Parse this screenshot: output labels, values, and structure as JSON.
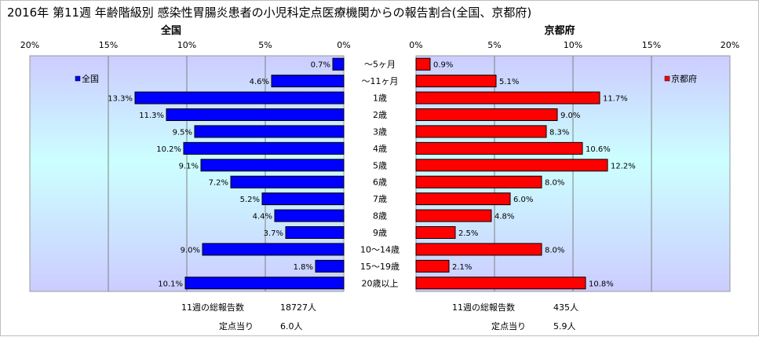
{
  "title": "2016年 第11週 年齢階級別 感染性胃腸炎患者の小児科定点医療機関からの報告割合(全国、京都府)",
  "chart_data": {
    "type": "bar",
    "orientation": "horizontal",
    "categories": [
      "～5ヶ月",
      "～11ヶ月",
      "1歳",
      "2歳",
      "3歳",
      "4歳",
      "5歳",
      "6歳",
      "7歳",
      "8歳",
      "9歳",
      "10～14歳",
      "15～19歳",
      "20歳以上"
    ],
    "left": {
      "panel_title": "全国",
      "legend": "全国",
      "color": "#0000ff",
      "values": [
        0.7,
        4.6,
        13.3,
        11.3,
        9.5,
        10.2,
        9.1,
        7.2,
        5.2,
        4.4,
        3.7,
        9.0,
        1.8,
        10.1
      ],
      "labels": [
        "0.7%",
        "4.6%",
        "13.3%",
        "11.3%",
        "9.5%",
        "10.2%",
        "9.1%",
        "7.2%",
        "5.2%",
        "4.4%",
        "3.7%",
        "9.0%",
        "1.8%",
        "10.1%"
      ],
      "xlim": [
        0,
        20
      ],
      "ticks": [
        "20%",
        "15%",
        "10%",
        "5%",
        "0%"
      ],
      "tick_values": [
        20,
        15,
        10,
        5,
        0
      ],
      "total_label": "11週の総報告数",
      "total_value": "18727人",
      "per_label": "定点当り",
      "per_value": "6.0人"
    },
    "right": {
      "panel_title": "京都府",
      "legend": "京都府",
      "color": "#ff0000",
      "values": [
        0.9,
        5.1,
        11.7,
        9.0,
        8.3,
        10.6,
        12.2,
        8.0,
        6.0,
        4.8,
        2.5,
        8.0,
        2.1,
        10.8
      ],
      "labels": [
        "0.9%",
        "5.1%",
        "11.7%",
        "9.0%",
        "8.3%",
        "10.6%",
        "12.2%",
        "8.0%",
        "6.0%",
        "4.8%",
        "2.5%",
        "8.0%",
        "2.1%",
        "10.8%"
      ],
      "xlim": [
        0,
        20
      ],
      "ticks": [
        "0%",
        "5%",
        "10%",
        "15%",
        "20%"
      ],
      "tick_values": [
        0,
        5,
        10,
        15,
        20
      ],
      "total_label": "11週の総報告数",
      "total_value": "435人",
      "per_label": "定点当り",
      "per_value": "5.9人"
    },
    "grid": true,
    "legend_position": "top"
  }
}
